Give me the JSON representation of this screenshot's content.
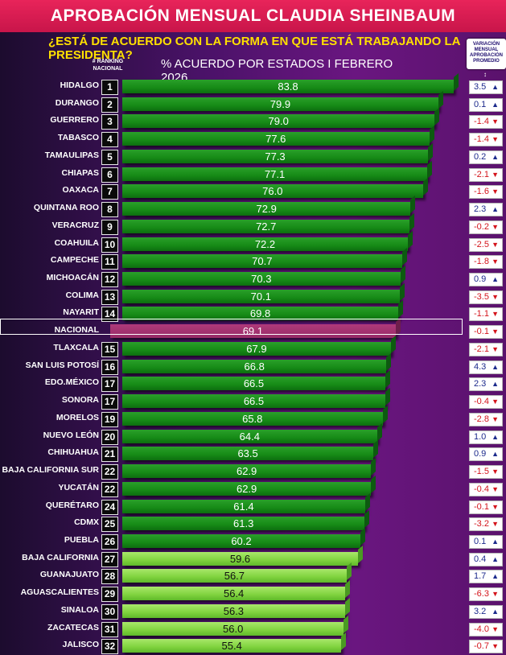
{
  "header": {
    "title": "APROBACIÓN MENSUAL CLAUDIA SHEINBAUM",
    "question": "¿ESTÁ DE ACUERDO CON LA FORMA EN QUE ESTÁ TRABAJANDO LA PRESIDENTA?",
    "subtitle": "% ACUERDO POR ESTADOS I FEBRERO 2026",
    "rank_header": "# RANKING NACIONAL",
    "variation_header": "VARIACIÓN MENSUAL APROBACIÓN PROMEDIO",
    "variation_header_arrow": "↕"
  },
  "colors": {
    "title_bar": "#d81b50",
    "question": "#ffe000",
    "bar_dark_green": "#168a16",
    "bar_light_green": "#7fd23e",
    "bar_nacional": "#962a66",
    "var_up": "#1c2a8c",
    "var_down": "#d4141c"
  },
  "chart_data": {
    "type": "bar",
    "orientation": "horizontal",
    "title": "APROBACIÓN MENSUAL CLAUDIA SHEINBAUM",
    "subtitle": "% ACUERDO POR ESTADOS I FEBRERO 2026",
    "xlim": [
      0,
      84
    ],
    "rows": [
      {
        "state": "HIDALGO",
        "rank": "1",
        "value": 83.8,
        "variation": "3.5",
        "dir": "up",
        "tone": "dark"
      },
      {
        "state": "DURANGO",
        "rank": "2",
        "value": 79.9,
        "variation": "0.1",
        "dir": "up",
        "tone": "dark"
      },
      {
        "state": "GUERRERO",
        "rank": "3",
        "value": 79.0,
        "variation": "-1.4",
        "dir": "down",
        "tone": "dark"
      },
      {
        "state": "TABASCO",
        "rank": "4",
        "value": 77.6,
        "variation": "-1.4",
        "dir": "down",
        "tone": "dark"
      },
      {
        "state": "TAMAULIPAS",
        "rank": "5",
        "value": 77.3,
        "variation": "0.2",
        "dir": "up",
        "tone": "dark"
      },
      {
        "state": "CHIAPAS",
        "rank": "6",
        "value": 77.1,
        "variation": "-2.1",
        "dir": "down",
        "tone": "dark"
      },
      {
        "state": "OAXACA",
        "rank": "7",
        "value": 76.0,
        "variation": "-1.6",
        "dir": "down",
        "tone": "dark"
      },
      {
        "state": "QUINTANA ROO",
        "rank": "8",
        "value": 72.9,
        "variation": "2.3",
        "dir": "up",
        "tone": "dark"
      },
      {
        "state": "VERACRUZ",
        "rank": "9",
        "value": 72.7,
        "variation": "-0.2",
        "dir": "down",
        "tone": "dark"
      },
      {
        "state": "COAHUILA",
        "rank": "10",
        "value": 72.2,
        "variation": "-2.5",
        "dir": "down",
        "tone": "dark"
      },
      {
        "state": "CAMPECHE",
        "rank": "11",
        "value": 70.7,
        "variation": "-1.8",
        "dir": "down",
        "tone": "dark"
      },
      {
        "state": "MICHOACÁN",
        "rank": "12",
        "value": 70.3,
        "variation": "0.9",
        "dir": "up",
        "tone": "dark"
      },
      {
        "state": "COLIMA",
        "rank": "13",
        "value": 70.1,
        "variation": "-3.5",
        "dir": "down",
        "tone": "dark"
      },
      {
        "state": "NAYARIT",
        "rank": "14",
        "value": 69.8,
        "variation": "-1.1",
        "dir": "down",
        "tone": "dark"
      },
      {
        "state": "NACIONAL",
        "rank": "",
        "value": 69.1,
        "variation": "-0.1",
        "dir": "down",
        "tone": "nacional"
      },
      {
        "state": "TLAXCALA",
        "rank": "15",
        "value": 67.9,
        "variation": "-2.1",
        "dir": "down",
        "tone": "dark"
      },
      {
        "state": "SAN LUIS POTOSÍ",
        "rank": "16",
        "value": 66.8,
        "variation": "4.3",
        "dir": "up",
        "tone": "dark"
      },
      {
        "state": "EDO.MÉXICO",
        "rank": "17",
        "value": 66.5,
        "variation": "2.3",
        "dir": "up",
        "tone": "dark"
      },
      {
        "state": "SONORA",
        "rank": "17",
        "value": 66.5,
        "variation": "-0.4",
        "dir": "down",
        "tone": "dark"
      },
      {
        "state": "MORELOS",
        "rank": "19",
        "value": 65.8,
        "variation": "-2.8",
        "dir": "down",
        "tone": "dark"
      },
      {
        "state": "NUEVO LEÓN",
        "rank": "20",
        "value": 64.4,
        "variation": "1.0",
        "dir": "up",
        "tone": "dark"
      },
      {
        "state": "CHIHUAHUA",
        "rank": "21",
        "value": 63.5,
        "variation": "0.9",
        "dir": "up",
        "tone": "dark"
      },
      {
        "state": "BAJA CALIFORNIA SUR",
        "rank": "22",
        "value": 62.9,
        "variation": "-1.5",
        "dir": "down",
        "tone": "dark"
      },
      {
        "state": "YUCATÁN",
        "rank": "22",
        "value": 62.9,
        "variation": "-0.4",
        "dir": "down",
        "tone": "dark"
      },
      {
        "state": "QUERÉTARO",
        "rank": "24",
        "value": 61.4,
        "variation": "-0.1",
        "dir": "down",
        "tone": "dark"
      },
      {
        "state": "CDMX",
        "rank": "25",
        "value": 61.3,
        "variation": "-3.2",
        "dir": "down",
        "tone": "dark"
      },
      {
        "state": "PUEBLA",
        "rank": "26",
        "value": 60.2,
        "variation": "0.1",
        "dir": "up",
        "tone": "dark"
      },
      {
        "state": "BAJA CALIFORNIA",
        "rank": "27",
        "value": 59.6,
        "variation": "0.4",
        "dir": "up",
        "tone": "light"
      },
      {
        "state": "GUANAJUATO",
        "rank": "28",
        "value": 56.7,
        "variation": "1.7",
        "dir": "up",
        "tone": "light"
      },
      {
        "state": "AGUASCALIENTES",
        "rank": "29",
        "value": 56.4,
        "variation": "-6.3",
        "dir": "down",
        "tone": "light"
      },
      {
        "state": "SINALOA",
        "rank": "30",
        "value": 56.3,
        "variation": "3.2",
        "dir": "up",
        "tone": "light"
      },
      {
        "state": "ZACATECAS",
        "rank": "31",
        "value": 56.0,
        "variation": "-4.0",
        "dir": "down",
        "tone": "light"
      },
      {
        "state": "JALISCO",
        "rank": "32",
        "value": 55.4,
        "variation": "-0.7",
        "dir": "down",
        "tone": "light"
      }
    ]
  }
}
